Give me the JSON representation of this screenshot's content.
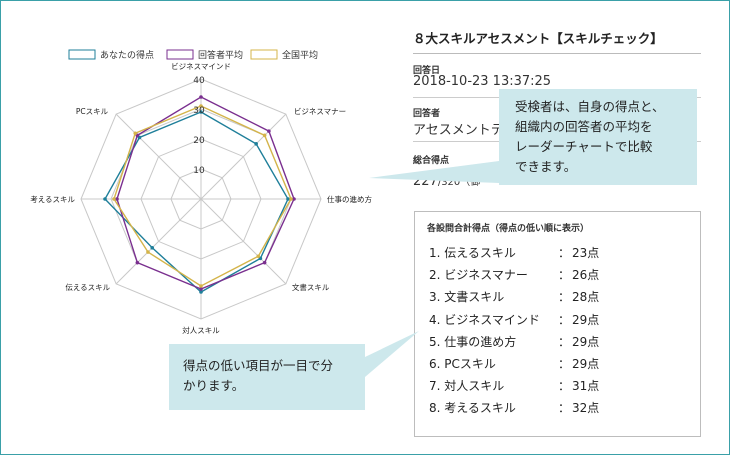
{
  "panel_title": "８大スキルアセスメント【スキルチェック】",
  "info": {
    "date_label": "回答日",
    "date_value": "2018-10-23 13:37:25",
    "respondent_label": "回答者",
    "respondent_value": "アセスメントテスト",
    "total_label": "総合得点",
    "total_value": "227",
    "total_suffix": "/320（御"
  },
  "ranking": {
    "title": "各設問合計得点（得点の低い順に表示）",
    "separator": "：",
    "items": [
      {
        "name": "1. 伝えるスキル",
        "score": "23点"
      },
      {
        "name": "2. ビジネスマナー",
        "score": "26点"
      },
      {
        "name": "3. 文書スキル",
        "score": "28点"
      },
      {
        "name": "4. ビジネスマインド",
        "score": "29点"
      },
      {
        "name": "5. 仕事の進め方",
        "score": "29点"
      },
      {
        "name": "6. PCスキル",
        "score": "29点"
      },
      {
        "name": "7. 対人スキル",
        "score": "31点"
      },
      {
        "name": "8. 考えるスキル",
        "score": "32点"
      }
    ]
  },
  "callouts": {
    "top": "受検者は、自身の得点と、\n組織内の回答者の平均を\nレーダーチャートで比較\nできます。",
    "bottom": "得点の低い項目が一目で分\nかります。"
  },
  "chart_data": {
    "type": "radar",
    "axes": [
      "ビジネスマインド",
      "ビジネスマナー",
      "仕事の進め方",
      "文書スキル",
      "対人スキル",
      "伝えるスキル",
      "考えるスキル",
      "PCスキル"
    ],
    "ticks": [
      10,
      20,
      30,
      40
    ],
    "range": [
      0,
      40
    ],
    "legend_position": "top",
    "series": [
      {
        "name": "あなたの得点",
        "color": "#1f7f9a",
        "values": [
          29,
          26,
          29,
          28,
          31,
          23,
          32,
          29
        ]
      },
      {
        "name": "回答者平均",
        "color": "#7a2f8f",
        "values": [
          34,
          32,
          31,
          30,
          30,
          30,
          28,
          30
        ]
      },
      {
        "name": "全国平均",
        "color": "#d4b44a",
        "values": [
          31,
          30,
          30,
          27,
          29,
          25,
          29,
          31
        ]
      }
    ]
  }
}
